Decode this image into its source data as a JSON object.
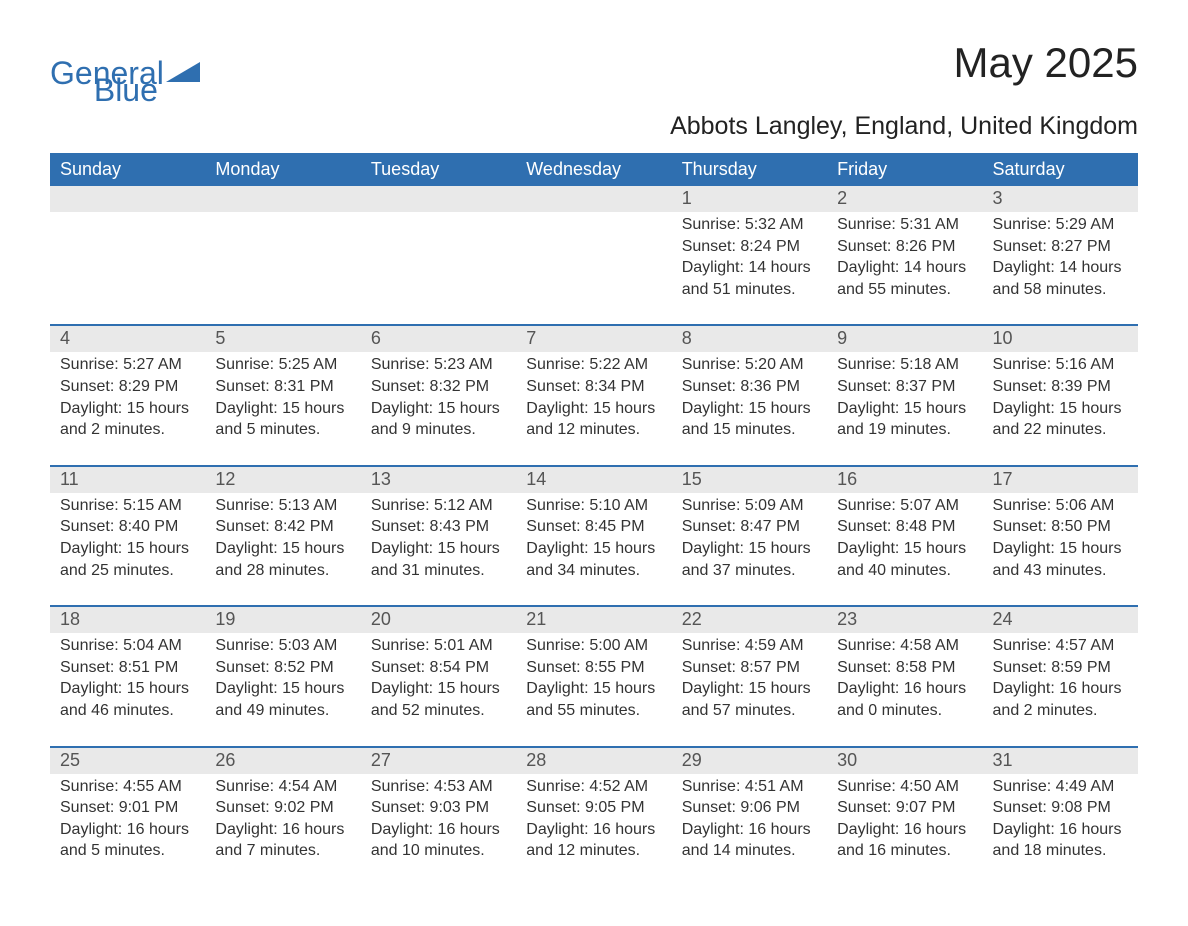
{
  "logo": {
    "word1": "General",
    "word2": "Blue",
    "text_color": "#2f6fb0",
    "triangle_color": "#2f6fb0"
  },
  "title": "May 2025",
  "location": "Abbots Langley, England, United Kingdom",
  "colors": {
    "header_bg": "#2f6fb0",
    "header_text": "#ffffff",
    "daynum_bg": "#e9e9e9",
    "row_divider": "#2f6fb0",
    "body_text": "#333333",
    "background": "#ffffff"
  },
  "fonts": {
    "title_size_pt": 32,
    "location_size_pt": 19,
    "dow_size_pt": 14,
    "daynum_size_pt": 14,
    "body_size_pt": 12
  },
  "days_of_week": [
    "Sunday",
    "Monday",
    "Tuesday",
    "Wednesday",
    "Thursday",
    "Friday",
    "Saturday"
  ],
  "weeks": [
    [
      null,
      null,
      null,
      null,
      {
        "n": "1",
        "sunrise": "Sunrise: 5:32 AM",
        "sunset": "Sunset: 8:24 PM",
        "daylight": "Daylight: 14 hours and 51 minutes."
      },
      {
        "n": "2",
        "sunrise": "Sunrise: 5:31 AM",
        "sunset": "Sunset: 8:26 PM",
        "daylight": "Daylight: 14 hours and 55 minutes."
      },
      {
        "n": "3",
        "sunrise": "Sunrise: 5:29 AM",
        "sunset": "Sunset: 8:27 PM",
        "daylight": "Daylight: 14 hours and 58 minutes."
      }
    ],
    [
      {
        "n": "4",
        "sunrise": "Sunrise: 5:27 AM",
        "sunset": "Sunset: 8:29 PM",
        "daylight": "Daylight: 15 hours and 2 minutes."
      },
      {
        "n": "5",
        "sunrise": "Sunrise: 5:25 AM",
        "sunset": "Sunset: 8:31 PM",
        "daylight": "Daylight: 15 hours and 5 minutes."
      },
      {
        "n": "6",
        "sunrise": "Sunrise: 5:23 AM",
        "sunset": "Sunset: 8:32 PM",
        "daylight": "Daylight: 15 hours and 9 minutes."
      },
      {
        "n": "7",
        "sunrise": "Sunrise: 5:22 AM",
        "sunset": "Sunset: 8:34 PM",
        "daylight": "Daylight: 15 hours and 12 minutes."
      },
      {
        "n": "8",
        "sunrise": "Sunrise: 5:20 AM",
        "sunset": "Sunset: 8:36 PM",
        "daylight": "Daylight: 15 hours and 15 minutes."
      },
      {
        "n": "9",
        "sunrise": "Sunrise: 5:18 AM",
        "sunset": "Sunset: 8:37 PM",
        "daylight": "Daylight: 15 hours and 19 minutes."
      },
      {
        "n": "10",
        "sunrise": "Sunrise: 5:16 AM",
        "sunset": "Sunset: 8:39 PM",
        "daylight": "Daylight: 15 hours and 22 minutes."
      }
    ],
    [
      {
        "n": "11",
        "sunrise": "Sunrise: 5:15 AM",
        "sunset": "Sunset: 8:40 PM",
        "daylight": "Daylight: 15 hours and 25 minutes."
      },
      {
        "n": "12",
        "sunrise": "Sunrise: 5:13 AM",
        "sunset": "Sunset: 8:42 PM",
        "daylight": "Daylight: 15 hours and 28 minutes."
      },
      {
        "n": "13",
        "sunrise": "Sunrise: 5:12 AM",
        "sunset": "Sunset: 8:43 PM",
        "daylight": "Daylight: 15 hours and 31 minutes."
      },
      {
        "n": "14",
        "sunrise": "Sunrise: 5:10 AM",
        "sunset": "Sunset: 8:45 PM",
        "daylight": "Daylight: 15 hours and 34 minutes."
      },
      {
        "n": "15",
        "sunrise": "Sunrise: 5:09 AM",
        "sunset": "Sunset: 8:47 PM",
        "daylight": "Daylight: 15 hours and 37 minutes."
      },
      {
        "n": "16",
        "sunrise": "Sunrise: 5:07 AM",
        "sunset": "Sunset: 8:48 PM",
        "daylight": "Daylight: 15 hours and 40 minutes."
      },
      {
        "n": "17",
        "sunrise": "Sunrise: 5:06 AM",
        "sunset": "Sunset: 8:50 PM",
        "daylight": "Daylight: 15 hours and 43 minutes."
      }
    ],
    [
      {
        "n": "18",
        "sunrise": "Sunrise: 5:04 AM",
        "sunset": "Sunset: 8:51 PM",
        "daylight": "Daylight: 15 hours and 46 minutes."
      },
      {
        "n": "19",
        "sunrise": "Sunrise: 5:03 AM",
        "sunset": "Sunset: 8:52 PM",
        "daylight": "Daylight: 15 hours and 49 minutes."
      },
      {
        "n": "20",
        "sunrise": "Sunrise: 5:01 AM",
        "sunset": "Sunset: 8:54 PM",
        "daylight": "Daylight: 15 hours and 52 minutes."
      },
      {
        "n": "21",
        "sunrise": "Sunrise: 5:00 AM",
        "sunset": "Sunset: 8:55 PM",
        "daylight": "Daylight: 15 hours and 55 minutes."
      },
      {
        "n": "22",
        "sunrise": "Sunrise: 4:59 AM",
        "sunset": "Sunset: 8:57 PM",
        "daylight": "Daylight: 15 hours and 57 minutes."
      },
      {
        "n": "23",
        "sunrise": "Sunrise: 4:58 AM",
        "sunset": "Sunset: 8:58 PM",
        "daylight": "Daylight: 16 hours and 0 minutes."
      },
      {
        "n": "24",
        "sunrise": "Sunrise: 4:57 AM",
        "sunset": "Sunset: 8:59 PM",
        "daylight": "Daylight: 16 hours and 2 minutes."
      }
    ],
    [
      {
        "n": "25",
        "sunrise": "Sunrise: 4:55 AM",
        "sunset": "Sunset: 9:01 PM",
        "daylight": "Daylight: 16 hours and 5 minutes."
      },
      {
        "n": "26",
        "sunrise": "Sunrise: 4:54 AM",
        "sunset": "Sunset: 9:02 PM",
        "daylight": "Daylight: 16 hours and 7 minutes."
      },
      {
        "n": "27",
        "sunrise": "Sunrise: 4:53 AM",
        "sunset": "Sunset: 9:03 PM",
        "daylight": "Daylight: 16 hours and 10 minutes."
      },
      {
        "n": "28",
        "sunrise": "Sunrise: 4:52 AM",
        "sunset": "Sunset: 9:05 PM",
        "daylight": "Daylight: 16 hours and 12 minutes."
      },
      {
        "n": "29",
        "sunrise": "Sunrise: 4:51 AM",
        "sunset": "Sunset: 9:06 PM",
        "daylight": "Daylight: 16 hours and 14 minutes."
      },
      {
        "n": "30",
        "sunrise": "Sunrise: 4:50 AM",
        "sunset": "Sunset: 9:07 PM",
        "daylight": "Daylight: 16 hours and 16 minutes."
      },
      {
        "n": "31",
        "sunrise": "Sunrise: 4:49 AM",
        "sunset": "Sunset: 9:08 PM",
        "daylight": "Daylight: 16 hours and 18 minutes."
      }
    ]
  ]
}
